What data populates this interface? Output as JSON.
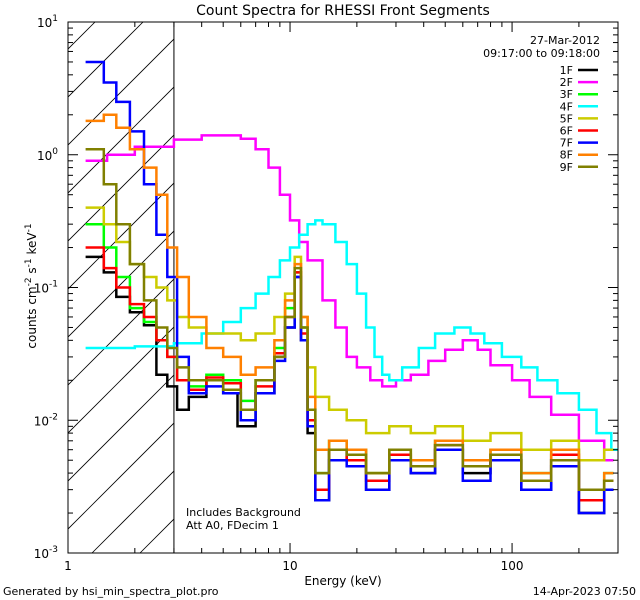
{
  "chart_data": {
    "type": "line",
    "title": "Count Spectra for RHESSI Front Segments",
    "xlabel": "Energy (keV)",
    "ylabel": "counts cm-2 s-1 keV-1",
    "ylabel_parts": {
      "base": "counts cm",
      "e1": "-2",
      "s": " s",
      "e2": "-1",
      "kev": " keV",
      "e3": "-1"
    },
    "xscale": "log",
    "yscale": "log",
    "xlim": [
      1,
      300
    ],
    "ylim": [
      0.001,
      10
    ],
    "x_ticks": [
      {
        "v": 1,
        "label": "1"
      },
      {
        "v": 10,
        "label": "10"
      },
      {
        "v": 100,
        "label": "100"
      }
    ],
    "y_ticks": [
      {
        "v": 0.001,
        "base": "10",
        "exp": "-3"
      },
      {
        "v": 0.01,
        "base": "10",
        "exp": "-2"
      },
      {
        "v": 0.1,
        "base": "10",
        "exp": "-1"
      },
      {
        "v": 1,
        "base": "10",
        "exp": "0"
      },
      {
        "v": 10,
        "base": "10",
        "exp": "1"
      }
    ],
    "hatched_region": [
      1,
      3
    ],
    "date_label": "27-Mar-2012",
    "time_label": "09:17:00 to 09:18:00",
    "annotation_lines": [
      "Includes Background",
      "Att A0, FDecim 1"
    ],
    "footer_left": "Generated by hsi_min_spectra_plot.pro",
    "footer_right": "14-Apr-2023 07:50",
    "series": [
      {
        "name": "1F",
        "color": "#000000",
        "points": [
          [
            1.2,
            0.17
          ],
          [
            1.45,
            0.13
          ],
          [
            1.65,
            0.085
          ],
          [
            1.9,
            0.065
          ],
          [
            2.2,
            0.052
          ],
          [
            2.5,
            0.022
          ],
          [
            2.8,
            0.018
          ],
          [
            3.1,
            0.012
          ],
          [
            3.5,
            0.015
          ],
          [
            4.2,
            0.02
          ],
          [
            5,
            0.016
          ],
          [
            5.8,
            0.009
          ],
          [
            7,
            0.016
          ],
          [
            8.5,
            0.03
          ],
          [
            9.5,
            0.05
          ],
          [
            10.5,
            0.12
          ],
          [
            11.2,
            0.04
          ],
          [
            12,
            0.008
          ],
          [
            13,
            0.0025
          ],
          [
            15,
            0.006
          ],
          [
            18,
            0.005
          ],
          [
            22,
            0.003
          ],
          [
            28,
            0.005
          ],
          [
            35,
            0.004
          ],
          [
            45,
            0.006
          ],
          [
            60,
            0.004
          ],
          [
            80,
            0.005
          ],
          [
            110,
            0.003
          ],
          [
            150,
            0.005
          ],
          [
            200,
            0.002
          ],
          [
            260,
            0.003
          ]
        ]
      },
      {
        "name": "2F",
        "color": "#ff00ff",
        "points": [
          [
            1.2,
            0.9
          ],
          [
            1.5,
            1.0
          ],
          [
            2,
            1.15
          ],
          [
            3,
            1.3
          ],
          [
            4,
            1.4
          ],
          [
            5,
            1.4
          ],
          [
            6,
            1.32
          ],
          [
            7,
            1.1
          ],
          [
            8,
            0.8
          ],
          [
            9,
            0.5
          ],
          [
            10,
            0.32
          ],
          [
            11,
            0.22
          ],
          [
            12,
            0.16
          ],
          [
            14,
            0.08
          ],
          [
            16,
            0.05
          ],
          [
            18,
            0.03
          ],
          [
            20,
            0.025
          ],
          [
            23,
            0.02
          ],
          [
            26,
            0.018
          ],
          [
            30,
            0.02
          ],
          [
            35,
            0.022
          ],
          [
            42,
            0.028
          ],
          [
            50,
            0.034
          ],
          [
            60,
            0.04
          ],
          [
            70,
            0.034
          ],
          [
            80,
            0.026
          ],
          [
            100,
            0.02
          ],
          [
            120,
            0.015
          ],
          [
            150,
            0.011
          ],
          [
            200,
            0.007
          ],
          [
            260,
            0.005
          ]
        ]
      },
      {
        "name": "3F",
        "color": "#00ff00",
        "points": [
          [
            1.2,
            0.3
          ],
          [
            1.45,
            0.2
          ],
          [
            1.65,
            0.12
          ],
          [
            1.9,
            0.07
          ],
          [
            2.2,
            0.055
          ],
          [
            2.5,
            0.04
          ],
          [
            2.8,
            0.03
          ],
          [
            3.1,
            0.02
          ],
          [
            3.5,
            0.018
          ],
          [
            4.2,
            0.022
          ],
          [
            5,
            0.02
          ],
          [
            6,
            0.014
          ],
          [
            7,
            0.02
          ],
          [
            8.5,
            0.035
          ],
          [
            9.5,
            0.07
          ],
          [
            10.5,
            0.13
          ],
          [
            11.2,
            0.05
          ],
          [
            12,
            0.012
          ],
          [
            13,
            0.004
          ],
          [
            15,
            0.007
          ],
          [
            18,
            0.006
          ],
          [
            22,
            0.004
          ],
          [
            28,
            0.006
          ],
          [
            35,
            0.005
          ],
          [
            45,
            0.007
          ],
          [
            60,
            0.005
          ],
          [
            80,
            0.006
          ],
          [
            110,
            0.004
          ],
          [
            150,
            0.006
          ],
          [
            200,
            0.003
          ],
          [
            260,
            0.004
          ]
        ]
      },
      {
        "name": "4F",
        "color": "#00ffff",
        "points": [
          [
            1.2,
            0.035
          ],
          [
            1.5,
            0.035
          ],
          [
            2,
            0.036
          ],
          [
            3,
            0.038
          ],
          [
            4,
            0.045
          ],
          [
            5,
            0.055
          ],
          [
            6,
            0.07
          ],
          [
            7,
            0.09
          ],
          [
            8,
            0.12
          ],
          [
            9,
            0.16
          ],
          [
            10,
            0.2
          ],
          [
            11,
            0.25
          ],
          [
            12,
            0.3
          ],
          [
            13,
            0.32
          ],
          [
            14,
            0.3
          ],
          [
            16,
            0.22
          ],
          [
            18,
            0.15
          ],
          [
            20,
            0.09
          ],
          [
            22,
            0.05
          ],
          [
            24,
            0.03
          ],
          [
            26,
            0.022
          ],
          [
            28,
            0.02
          ],
          [
            32,
            0.025
          ],
          [
            38,
            0.035
          ],
          [
            45,
            0.045
          ],
          [
            55,
            0.05
          ],
          [
            65,
            0.045
          ],
          [
            75,
            0.038
          ],
          [
            90,
            0.03
          ],
          [
            110,
            0.025
          ],
          [
            130,
            0.02
          ],
          [
            160,
            0.016
          ],
          [
            200,
            0.012
          ],
          [
            240,
            0.008
          ],
          [
            280,
            0.006
          ]
        ]
      },
      {
        "name": "5F",
        "color": "#cccc00",
        "points": [
          [
            1.2,
            0.4
          ],
          [
            1.45,
            0.3
          ],
          [
            1.65,
            0.22
          ],
          [
            1.9,
            0.15
          ],
          [
            2.2,
            0.12
          ],
          [
            2.5,
            0.1
          ],
          [
            2.8,
            0.08
          ],
          [
            3.1,
            0.06
          ],
          [
            3.5,
            0.05
          ],
          [
            4.2,
            0.045
          ],
          [
            5,
            0.045
          ],
          [
            6,
            0.04
          ],
          [
            7,
            0.045
          ],
          [
            8.5,
            0.06
          ],
          [
            9.5,
            0.09
          ],
          [
            10.5,
            0.17
          ],
          [
            11.2,
            0.06
          ],
          [
            12,
            0.025
          ],
          [
            13,
            0.015
          ],
          [
            15,
            0.012
          ],
          [
            18,
            0.01
          ],
          [
            22,
            0.008
          ],
          [
            28,
            0.009
          ],
          [
            35,
            0.008
          ],
          [
            45,
            0.009
          ],
          [
            60,
            0.007
          ],
          [
            80,
            0.008
          ],
          [
            110,
            0.006
          ],
          [
            150,
            0.007
          ],
          [
            200,
            0.005
          ],
          [
            260,
            0.006
          ]
        ]
      },
      {
        "name": "6F",
        "color": "#ff0000",
        "points": [
          [
            1.2,
            0.2
          ],
          [
            1.45,
            0.14
          ],
          [
            1.65,
            0.1
          ],
          [
            1.9,
            0.075
          ],
          [
            2.2,
            0.06
          ],
          [
            2.5,
            0.04
          ],
          [
            2.8,
            0.03
          ],
          [
            3.1,
            0.02
          ],
          [
            3.5,
            0.017
          ],
          [
            4.2,
            0.021
          ],
          [
            5,
            0.019
          ],
          [
            6,
            0.012
          ],
          [
            7,
            0.018
          ],
          [
            8.5,
            0.032
          ],
          [
            9.5,
            0.06
          ],
          [
            10.5,
            0.13
          ],
          [
            11.2,
            0.045
          ],
          [
            12,
            0.01
          ],
          [
            13,
            0.003
          ],
          [
            15,
            0.006
          ],
          [
            18,
            0.005
          ],
          [
            22,
            0.0035
          ],
          [
            28,
            0.0055
          ],
          [
            35,
            0.0045
          ],
          [
            45,
            0.0065
          ],
          [
            60,
            0.0045
          ],
          [
            80,
            0.0055
          ],
          [
            110,
            0.0035
          ],
          [
            150,
            0.0055
          ],
          [
            200,
            0.0025
          ],
          [
            260,
            0.0035
          ]
        ]
      },
      {
        "name": "7F",
        "color": "#0000ff",
        "points": [
          [
            1.2,
            5.0
          ],
          [
            1.45,
            3.5
          ],
          [
            1.65,
            2.5
          ],
          [
            1.9,
            1.5
          ],
          [
            2.2,
            0.6
          ],
          [
            2.5,
            0.25
          ],
          [
            2.8,
            0.12
          ],
          [
            3.1,
            0.03
          ],
          [
            3.5,
            0.016
          ],
          [
            4.2,
            0.018
          ],
          [
            5,
            0.016
          ],
          [
            6,
            0.01
          ],
          [
            7,
            0.016
          ],
          [
            8.5,
            0.028
          ],
          [
            9.5,
            0.05
          ],
          [
            10.5,
            0.12
          ],
          [
            11.2,
            0.04
          ],
          [
            12,
            0.009
          ],
          [
            13,
            0.0025
          ],
          [
            15,
            0.005
          ],
          [
            18,
            0.0045
          ],
          [
            22,
            0.003
          ],
          [
            28,
            0.005
          ],
          [
            35,
            0.004
          ],
          [
            45,
            0.006
          ],
          [
            60,
            0.0035
          ],
          [
            80,
            0.005
          ],
          [
            110,
            0.003
          ],
          [
            150,
            0.0045
          ],
          [
            200,
            0.002
          ],
          [
            260,
            0.003
          ]
        ]
      },
      {
        "name": "8F",
        "color": "#ff8000",
        "points": [
          [
            1.2,
            1.8
          ],
          [
            1.45,
            2.0
          ],
          [
            1.65,
            1.6
          ],
          [
            1.9,
            1.1
          ],
          [
            2.2,
            0.8
          ],
          [
            2.5,
            0.5
          ],
          [
            2.8,
            0.2
          ],
          [
            3.1,
            0.12
          ],
          [
            3.5,
            0.06
          ],
          [
            4.2,
            0.035
          ],
          [
            5,
            0.03
          ],
          [
            6,
            0.022
          ],
          [
            7,
            0.025
          ],
          [
            8.5,
            0.04
          ],
          [
            9.5,
            0.08
          ],
          [
            10.5,
            0.15
          ],
          [
            11.2,
            0.06
          ],
          [
            12,
            0.015
          ],
          [
            13,
            0.006
          ],
          [
            15,
            0.007
          ],
          [
            18,
            0.006
          ],
          [
            22,
            0.004
          ],
          [
            28,
            0.006
          ],
          [
            35,
            0.005
          ],
          [
            45,
            0.007
          ],
          [
            60,
            0.005
          ],
          [
            80,
            0.006
          ],
          [
            110,
            0.004
          ],
          [
            150,
            0.006
          ],
          [
            200,
            0.003
          ],
          [
            260,
            0.004
          ]
        ]
      },
      {
        "name": "9F",
        "color": "#808000",
        "points": [
          [
            1.2,
            1.1
          ],
          [
            1.45,
            0.6
          ],
          [
            1.65,
            0.3
          ],
          [
            1.9,
            0.15
          ],
          [
            2.2,
            0.08
          ],
          [
            2.5,
            0.05
          ],
          [
            2.8,
            0.035
          ],
          [
            3.1,
            0.025
          ],
          [
            3.5,
            0.02
          ],
          [
            4.2,
            0.02
          ],
          [
            5,
            0.017
          ],
          [
            6,
            0.012
          ],
          [
            7,
            0.02
          ],
          [
            8.5,
            0.03
          ],
          [
            9.5,
            0.06
          ],
          [
            10.5,
            0.14
          ],
          [
            11.2,
            0.05
          ],
          [
            12,
            0.012
          ],
          [
            13,
            0.004
          ],
          [
            15,
            0.006
          ],
          [
            18,
            0.0055
          ],
          [
            22,
            0.004
          ],
          [
            28,
            0.006
          ],
          [
            35,
            0.0045
          ],
          [
            45,
            0.0065
          ],
          [
            60,
            0.0045
          ],
          [
            80,
            0.0055
          ],
          [
            110,
            0.0035
          ],
          [
            150,
            0.005
          ],
          [
            200,
            0.003
          ],
          [
            260,
            0.0035
          ]
        ]
      }
    ]
  }
}
